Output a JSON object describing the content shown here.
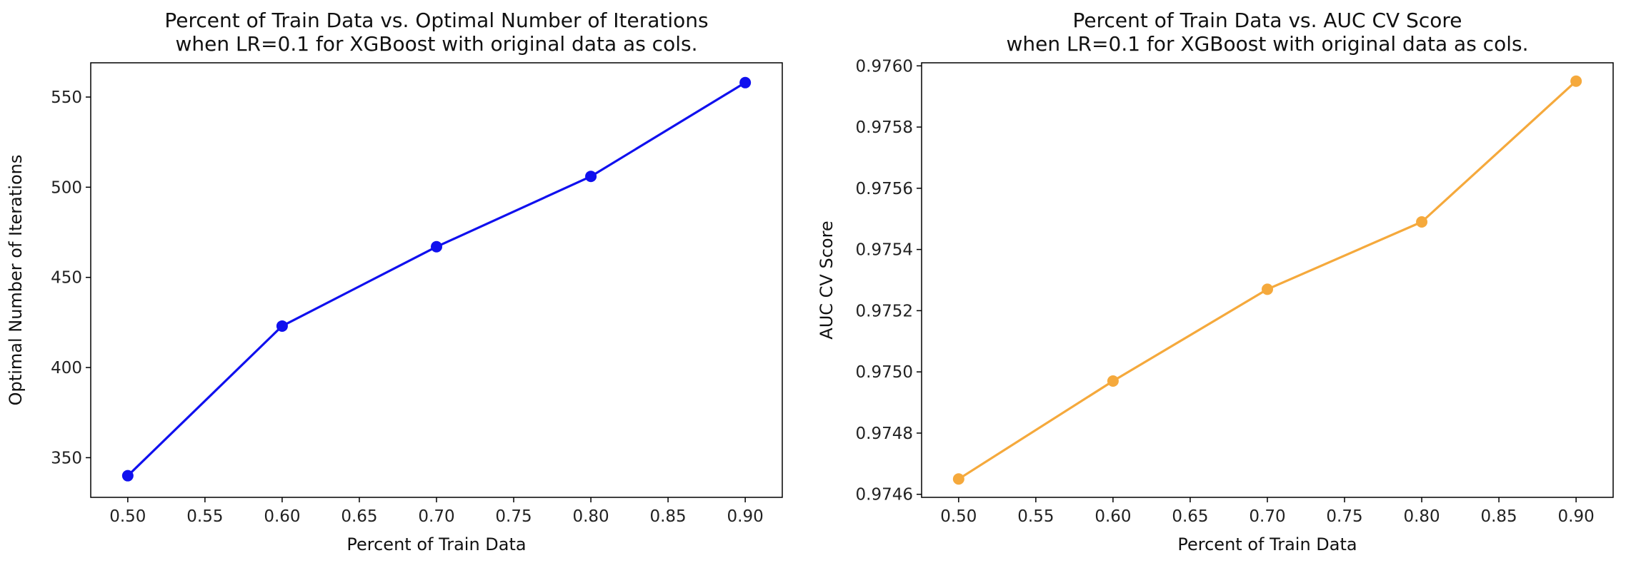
{
  "chart_data": [
    {
      "type": "line",
      "title": "Percent of Train Data vs. Optimal Number of Iterations",
      "subtitle": "when LR=0.1 for XGBoost with original data as cols.",
      "xlabel": "Percent of Train Data",
      "ylabel": "Optimal Number of Iterations",
      "x": [
        0.5,
        0.6,
        0.7,
        0.8,
        0.9
      ],
      "series": [
        {
          "values": [
            340,
            423,
            467,
            506,
            558
          ],
          "color": "#1010ee"
        }
      ],
      "xlim": [
        0.476,
        0.924
      ],
      "ylim": [
        328,
        569
      ],
      "xticks": [
        0.5,
        0.55,
        0.6,
        0.65,
        0.7,
        0.75,
        0.8,
        0.85,
        0.9
      ],
      "xtick_labels": [
        "0.50",
        "0.55",
        "0.60",
        "0.65",
        "0.70",
        "0.75",
        "0.80",
        "0.85",
        "0.90"
      ],
      "yticks": [
        350,
        400,
        450,
        500,
        550
      ],
      "ytick_labels": [
        "350",
        "400",
        "450",
        "500",
        "550"
      ],
      "grid": false,
      "legend": null
    },
    {
      "type": "line",
      "title": "Percent of Train Data vs. AUC CV Score",
      "subtitle": "when LR=0.1 for XGBoost with original data as cols.",
      "xlabel": "Percent of Train Data",
      "ylabel": "AUC CV Score",
      "x": [
        0.5,
        0.6,
        0.7,
        0.8,
        0.9
      ],
      "series": [
        {
          "values": [
            0.97465,
            0.97497,
            0.97527,
            0.97549,
            0.97595
          ],
          "color": "#f5a93c"
        }
      ],
      "xlim": [
        0.476,
        0.924
      ],
      "ylim": [
        0.97459,
        0.97601
      ],
      "xticks": [
        0.5,
        0.55,
        0.6,
        0.65,
        0.7,
        0.75,
        0.8,
        0.85,
        0.9
      ],
      "xtick_labels": [
        "0.50",
        "0.55",
        "0.60",
        "0.65",
        "0.70",
        "0.75",
        "0.80",
        "0.85",
        "0.90"
      ],
      "yticks": [
        0.9746,
        0.9748,
        0.975,
        0.9752,
        0.9754,
        0.9756,
        0.9758,
        0.976
      ],
      "ytick_labels": [
        "0.9746",
        "0.9748",
        "0.9750",
        "0.9752",
        "0.9754",
        "0.9756",
        "0.9758",
        "0.9760"
      ],
      "grid": false,
      "legend": null
    }
  ]
}
